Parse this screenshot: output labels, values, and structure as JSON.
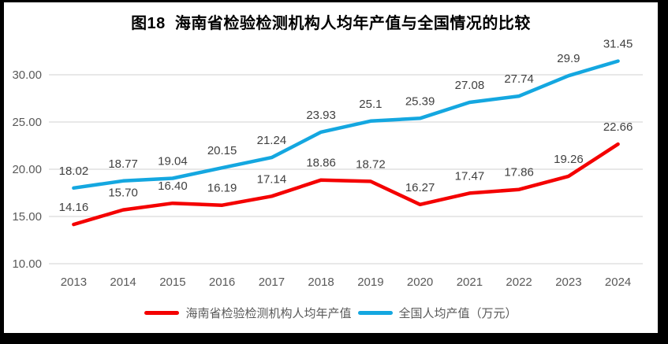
{
  "title": "图18  海南省检验检测机构人均年产值与全国情况的比较",
  "legend": {
    "items": [
      {
        "label": "海南省检验检测机构人均年产值",
        "color": "#f40000"
      },
      {
        "label": "全国人均产值（万元）",
        "color": "#14a7e0"
      }
    ]
  },
  "colors": {
    "background": "#ffffff",
    "frame": "#000000",
    "grid": "#d9d9d9",
    "tick_text": "#595959",
    "data_label": "#404040",
    "hainan_line": "#f40000",
    "national_line": "#14a7e0"
  },
  "chart_data": {
    "type": "line",
    "title": "图18  海南省检验检测机构人均年产值与全国情况的比较",
    "categories": [
      "2013",
      "2014",
      "2015",
      "2016",
      "2017",
      "2018",
      "2019",
      "2020",
      "2021",
      "2022",
      "2023",
      "2024"
    ],
    "series": [
      {
        "name": "海南省检验检测机构人均年产值",
        "color": "#f40000",
        "values": [
          14.16,
          15.7,
          16.4,
          16.19,
          17.14,
          18.86,
          18.72,
          16.27,
          17.47,
          17.86,
          19.26,
          22.66
        ],
        "labels": [
          "14.16",
          "15.70",
          "16.40",
          "16.19",
          "17.14",
          "18.86",
          "18.72",
          "16.27",
          "17.47",
          "17.86",
          "19.26",
          "22.66"
        ]
      },
      {
        "name": "全国人均产值（万元）",
        "color": "#14a7e0",
        "values": [
          18.02,
          18.77,
          19.04,
          20.15,
          21.24,
          23.93,
          25.1,
          25.39,
          27.08,
          27.74,
          29.9,
          31.45
        ],
        "labels": [
          "18.02",
          "18.77",
          "19.04",
          "20.15",
          "21.24",
          "23.93",
          "25.1",
          "25.39",
          "27.08",
          "27.74",
          "29.9",
          "31.45"
        ]
      }
    ],
    "y_axis": {
      "min": 10,
      "max": 30,
      "tick_interval": 5,
      "tick_labels": [
        "10.00",
        "15.00",
        "20.00",
        "25.00",
        "30.00"
      ]
    },
    "xlabel": "",
    "ylabel": "",
    "grid": true,
    "legend_position": "bottom"
  }
}
